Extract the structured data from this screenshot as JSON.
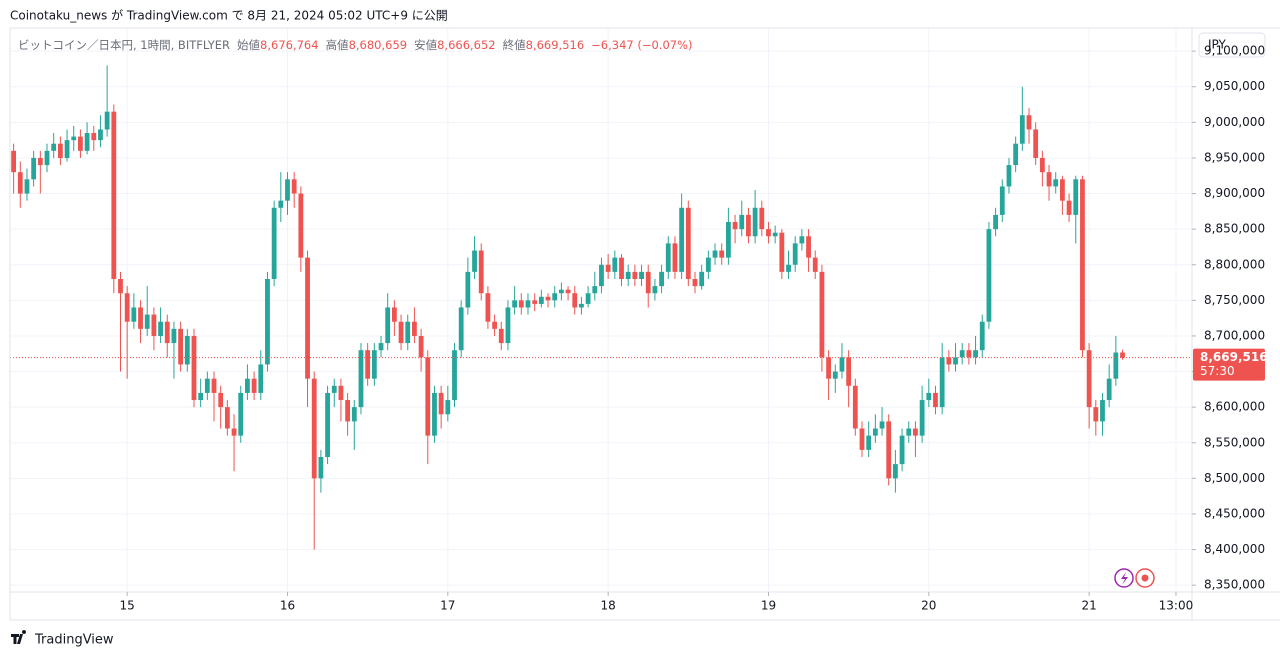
{
  "chart_data": {
    "type": "candlestick",
    "header": {
      "publisher": "Coinotaku_news が TradingView.com で 8月 21, 2024 05:02 UTC+9 に公開",
      "symbol": "ビットコイン／日本円, 1時間, BITFLYER",
      "open_label": "始値",
      "open": "8,676,764",
      "high_label": "高値",
      "high": "8,680,659",
      "low_label": "安値",
      "low": "8,666,652",
      "close_label": "終値",
      "close": "8,669,516",
      "change": "−6,347 (−0.07%)"
    },
    "currency": "JPY",
    "brand": "TradingView",
    "price_label": "8,669,516",
    "countdown": "57:30",
    "up_color": "#26a69a",
    "down_color": "#ef5350",
    "grid": true,
    "open": [
      8960000,
      8930000,
      8900000,
      8920000,
      8950000,
      8940000,
      8960000,
      8970000,
      8950000,
      8975000,
      8980000,
      8960000,
      8985000,
      8975000,
      8990000,
      9015000,
      8780000,
      8760000,
      8720000,
      8740000,
      8710000,
      8730000,
      8700000,
      8720000,
      8690000,
      8710000,
      8660000,
      8700000,
      8610000,
      8620000,
      8640000,
      8620000,
      8600000,
      8570000,
      8560000,
      8620000,
      8640000,
      8620000,
      8660000,
      8780000,
      8880000,
      8890000,
      8920000,
      8900000,
      8810000,
      8640000,
      8500000,
      8530000,
      8620000,
      8630000,
      8610000,
      8580000,
      8600000,
      8680000,
      8640000,
      8680000,
      8690000,
      8740000,
      8720000,
      8690000,
      8720000,
      8700000,
      8670000,
      8560000,
      8620000,
      8590000,
      8610000,
      8680000,
      8740000,
      8790000,
      8820000,
      8760000,
      8720000,
      8710000,
      8690000,
      8740000,
      8750000,
      8740000,
      8750000,
      8745000,
      8755000,
      8750000,
      8760000,
      8765000,
      8760000,
      8740000,
      8745000,
      8760000,
      8770000,
      8800000,
      8790000,
      8810000,
      8780000,
      8790000,
      8780000,
      8790000,
      8760000,
      8770000,
      8790000,
      8830000,
      8790000,
      8880000,
      8780000,
      8770000,
      8790000,
      8810000,
      8820000,
      8810000,
      8860000,
      8850000,
      8870000,
      8840000,
      8880000,
      8850000,
      8840000,
      8845000,
      8790000,
      8800000,
      8830000,
      8840000,
      8810000,
      8790000,
      8670000,
      8640000,
      8650000,
      8670000,
      8630000,
      8570000,
      8540000,
      8560000,
      8570000,
      8580000,
      8500000,
      8520000,
      8560000,
      8570000,
      8560000,
      8610000,
      8620000,
      8600000,
      8670000,
      8660000,
      8670000,
      8680000,
      8670000,
      8680000,
      8720000,
      8850000,
      8870000,
      8910000,
      8940000,
      8970000,
      9010000,
      8990000,
      8950000,
      8930000,
      8910000,
      8920000,
      8890000,
      8870000,
      8920000,
      8680000,
      8600000,
      8580000,
      8610000,
      8640000,
      8676764
    ],
    "high": [
      8970000,
      8945000,
      8935000,
      8960000,
      8960000,
      8970000,
      8985000,
      8980000,
      8990000,
      8995000,
      8990000,
      9000000,
      8995000,
      9010000,
      9080000,
      9025000,
      8790000,
      8770000,
      8760000,
      8750000,
      8770000,
      8740000,
      8740000,
      8730000,
      8720000,
      8720000,
      8710000,
      8710000,
      8640000,
      8650000,
      8650000,
      8630000,
      8610000,
      8590000,
      8630000,
      8660000,
      8650000,
      8680000,
      8790000,
      8890000,
      8930000,
      8930000,
      8930000,
      8910000,
      8820000,
      8650000,
      8540000,
      8630000,
      8640000,
      8640000,
      8620000,
      8610000,
      8690000,
      8690000,
      8690000,
      8700000,
      8760000,
      8750000,
      8730000,
      8730000,
      8740000,
      8710000,
      8680000,
      8630000,
      8630000,
      8630000,
      8690000,
      8750000,
      8810000,
      8840000,
      8830000,
      8770000,
      8730000,
      8720000,
      8750000,
      8770000,
      8760000,
      8760000,
      8760000,
      8765000,
      8760000,
      8770000,
      8775000,
      8770000,
      8770000,
      8755000,
      8770000,
      8790000,
      8810000,
      8815000,
      8820000,
      8815000,
      8800000,
      8800000,
      8800000,
      8800000,
      8780000,
      8800000,
      8840000,
      8840000,
      8900000,
      8890000,
      8790000,
      8800000,
      8820000,
      8830000,
      8830000,
      8880000,
      8870000,
      8890000,
      8880000,
      8905000,
      8890000,
      8860000,
      8855000,
      8850000,
      8820000,
      8840000,
      8850000,
      8850000,
      8820000,
      8800000,
      8680000,
      8660000,
      8690000,
      8680000,
      8640000,
      8580000,
      8580000,
      8590000,
      8600000,
      8590000,
      8540000,
      8570000,
      8580000,
      8580000,
      8630000,
      8640000,
      8630000,
      8690000,
      8680000,
      8690000,
      8690000,
      8690000,
      8700000,
      8730000,
      8860000,
      8880000,
      8920000,
      8950000,
      8980000,
      9050000,
      9020000,
      9000000,
      8960000,
      8940000,
      8930000,
      8925000,
      8900000,
      8925000,
      8925000,
      8690000,
      8610000,
      8620000,
      8660000,
      8700000,
      8680659
    ],
    "low": [
      8900000,
      8880000,
      8890000,
      8910000,
      8900000,
      8930000,
      8950000,
      8940000,
      8945000,
      8960000,
      8950000,
      8955000,
      8960000,
      8965000,
      8980000,
      8760000,
      8650000,
      8640000,
      8710000,
      8690000,
      8700000,
      8680000,
      8690000,
      8670000,
      8640000,
      8650000,
      8650000,
      8600000,
      8600000,
      8610000,
      8580000,
      8570000,
      8560000,
      8510000,
      8550000,
      8610000,
      8610000,
      8610000,
      8650000,
      8770000,
      8860000,
      8870000,
      8880000,
      8790000,
      8600000,
      8400000,
      8480000,
      8520000,
      8600000,
      8580000,
      8560000,
      8540000,
      8590000,
      8630000,
      8630000,
      8670000,
      8680000,
      8700000,
      8680000,
      8680000,
      8690000,
      8650000,
      8520000,
      8550000,
      8570000,
      8580000,
      8600000,
      8670000,
      8730000,
      8780000,
      8750000,
      8710000,
      8700000,
      8680000,
      8680000,
      8730000,
      8730000,
      8730000,
      8735000,
      8740000,
      8740000,
      8740000,
      8750000,
      8750000,
      8730000,
      8730000,
      8740000,
      8750000,
      8760000,
      8780000,
      8780000,
      8770000,
      8770000,
      8770000,
      8770000,
      8740000,
      8750000,
      8760000,
      8780000,
      8780000,
      8780000,
      8770000,
      8760000,
      8765000,
      8780000,
      8800000,
      8800000,
      8800000,
      8830000,
      8840000,
      8830000,
      8830000,
      8840000,
      8830000,
      8830000,
      8780000,
      8780000,
      8790000,
      8820000,
      8790000,
      8780000,
      8650000,
      8610000,
      8620000,
      8640000,
      8600000,
      8560000,
      8530000,
      8530000,
      8550000,
      8560000,
      8490000,
      8480000,
      8510000,
      8550000,
      8530000,
      8550000,
      8600000,
      8590000,
      8590000,
      8650000,
      8650000,
      8660000,
      8660000,
      8660000,
      8670000,
      8710000,
      8840000,
      8860000,
      8900000,
      8930000,
      8960000,
      8970000,
      8940000,
      8910000,
      8890000,
      8900000,
      8870000,
      8860000,
      8830000,
      8670000,
      8570000,
      8560000,
      8560000,
      8600000,
      8630000,
      8666652
    ],
    "close": [
      8930000,
      8900000,
      8920000,
      8950000,
      8940000,
      8960000,
      8970000,
      8950000,
      8975000,
      8980000,
      8960000,
      8985000,
      8975000,
      8990000,
      9015000,
      8780000,
      8760000,
      8720000,
      8740000,
      8710000,
      8730000,
      8700000,
      8720000,
      8690000,
      8710000,
      8660000,
      8700000,
      8610000,
      8620000,
      8640000,
      8620000,
      8600000,
      8570000,
      8560000,
      8620000,
      8640000,
      8620000,
      8660000,
      8780000,
      8880000,
      8890000,
      8920000,
      8900000,
      8810000,
      8640000,
      8500000,
      8530000,
      8620000,
      8630000,
      8610000,
      8580000,
      8600000,
      8680000,
      8640000,
      8680000,
      8690000,
      8740000,
      8720000,
      8690000,
      8720000,
      8700000,
      8670000,
      8560000,
      8620000,
      8590000,
      8610000,
      8680000,
      8740000,
      8790000,
      8820000,
      8760000,
      8720000,
      8710000,
      8690000,
      8740000,
      8750000,
      8740000,
      8750000,
      8745000,
      8755000,
      8750000,
      8760000,
      8765000,
      8760000,
      8740000,
      8745000,
      8760000,
      8770000,
      8800000,
      8790000,
      8810000,
      8780000,
      8790000,
      8780000,
      8790000,
      8760000,
      8770000,
      8790000,
      8830000,
      8790000,
      8880000,
      8780000,
      8770000,
      8790000,
      8810000,
      8820000,
      8810000,
      8860000,
      8850000,
      8870000,
      8840000,
      8880000,
      8850000,
      8840000,
      8845000,
      8790000,
      8800000,
      8830000,
      8840000,
      8810000,
      8790000,
      8670000,
      8640000,
      8650000,
      8670000,
      8630000,
      8570000,
      8540000,
      8560000,
      8570000,
      8580000,
      8500000,
      8520000,
      8560000,
      8570000,
      8560000,
      8610000,
      8620000,
      8600000,
      8670000,
      8660000,
      8670000,
      8680000,
      8670000,
      8680000,
      8720000,
      8850000,
      8870000,
      8910000,
      8940000,
      8970000,
      9010000,
      8990000,
      8950000,
      8930000,
      8910000,
      8920000,
      8890000,
      8870000,
      8920000,
      8680000,
      8600000,
      8580000,
      8610000,
      8640000,
      8676764,
      8669516
    ],
    "xlim": [
      -0.54,
      176.4
    ],
    "xticks": [
      {
        "value": 17,
        "label": "15"
      },
      {
        "value": 41,
        "label": "16"
      },
      {
        "value": 65,
        "label": "17"
      },
      {
        "value": 89,
        "label": "18"
      },
      {
        "value": 113,
        "label": "19"
      },
      {
        "value": 137,
        "label": "20"
      },
      {
        "value": 161,
        "label": "21"
      },
      {
        "value": 174,
        "label": "13:00"
      }
    ],
    "ylim": [
      8340400,
      9132500
    ],
    "yticks": [
      {
        "value": 8350000,
        "label": "8,350,000"
      },
      {
        "value": 8400000,
        "label": "8,400,000"
      },
      {
        "value": 8450000,
        "label": "8,450,000"
      },
      {
        "value": 8500000,
        "label": "8,500,000"
      },
      {
        "value": 8550000,
        "label": "8,550,000"
      },
      {
        "value": 8600000,
        "label": "8,600,000"
      },
      {
        "value": 8650000,
        "label": "8,650,000"
      },
      {
        "value": 8700000,
        "label": "8,700,000"
      },
      {
        "value": 8750000,
        "label": "8,750,000"
      },
      {
        "value": 8800000,
        "label": "8,800,000"
      },
      {
        "value": 8850000,
        "label": "8,850,000"
      },
      {
        "value": 8900000,
        "label": "8,900,000"
      },
      {
        "value": 8950000,
        "label": "8,950,000"
      },
      {
        "value": 9000000,
        "label": "9,000,000"
      },
      {
        "value": 9050000,
        "label": "9,050,000"
      },
      {
        "value": 9100000,
        "label": "9,100,000"
      }
    ]
  }
}
